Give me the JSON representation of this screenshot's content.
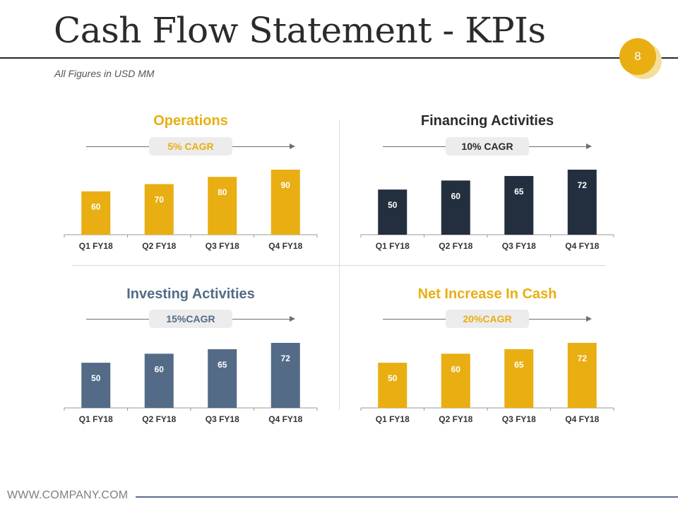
{
  "header": {
    "title": "Cash Flow Statement - KPIs",
    "subtitle": "All Figures in USD MM",
    "page_number": "8"
  },
  "footer": {
    "website": "WWW.COMPANY.COM"
  },
  "colors": {
    "gold": "#e8ae12",
    "navy": "#232f3e",
    "slate": "#536b87",
    "dark_text": "#2b2b2b"
  },
  "panels": [
    {
      "title": "Operations",
      "cagr": "5% CAGR",
      "title_color": "#e8ae12",
      "cagr_color": "#e8ae12"
    },
    {
      "title": "Financing Activities",
      "cagr": "10% CAGR",
      "title_color": "#2b2b2b",
      "cagr_color": "#2b2b2b"
    },
    {
      "title": "Investing Activities",
      "cagr": "15%CAGR",
      "title_color": "#536b87",
      "cagr_color": "#536b87"
    },
    {
      "title": "Net Increase In Cash",
      "cagr": "20%CAGR",
      "title_color": "#e8ae12",
      "cagr_color": "#e8ae12"
    }
  ],
  "chart_data": [
    {
      "type": "bar",
      "title": "Operations",
      "annotation": "5% CAGR",
      "categories": [
        "Q1 FY18",
        "Q2 FY18",
        "Q3 FY18",
        "Q4 FY18"
      ],
      "values": [
        60,
        70,
        80,
        90
      ],
      "color": "#e8ae12",
      "ylim": [
        0,
        90
      ]
    },
    {
      "type": "bar",
      "title": "Financing Activities",
      "annotation": "10% CAGR",
      "categories": [
        "Q1 FY18",
        "Q2 FY18",
        "Q3 FY18",
        "Q4 FY18"
      ],
      "values": [
        50,
        60,
        65,
        72
      ],
      "color": "#232f3e",
      "ylim": [
        0,
        72
      ]
    },
    {
      "type": "bar",
      "title": "Investing Activities",
      "annotation": "15%CAGR",
      "categories": [
        "Q1 FY18",
        "Q2 FY18",
        "Q3 FY18",
        "Q4 FY18"
      ],
      "values": [
        50,
        60,
        65,
        72
      ],
      "color": "#536b87",
      "ylim": [
        0,
        72
      ]
    },
    {
      "type": "bar",
      "title": "Net Increase In Cash",
      "annotation": "20%CAGR",
      "categories": [
        "Q1 FY18",
        "Q2 FY18",
        "Q3 FY18",
        "Q4 FY18"
      ],
      "values": [
        50,
        60,
        65,
        72
      ],
      "color": "#e8ae12",
      "ylim": [
        0,
        72
      ]
    }
  ]
}
